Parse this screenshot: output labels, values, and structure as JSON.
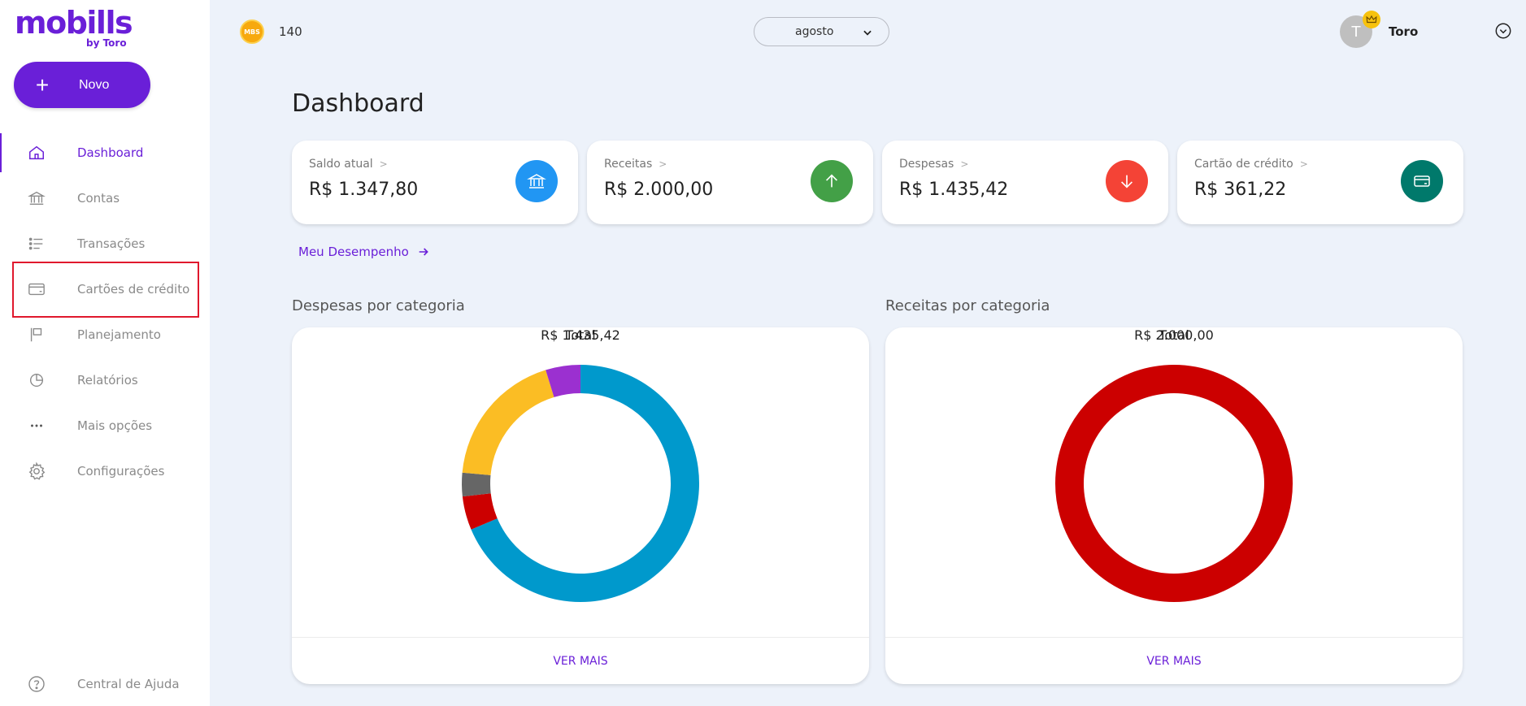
{
  "app": {
    "logo": "mobills",
    "logo_sub": "by Toro",
    "brand_color": "#6a1fd8"
  },
  "sidebar": {
    "new_button": "Novo",
    "items": [
      {
        "label": "Dashboard",
        "icon": "home-icon",
        "active": true
      },
      {
        "label": "Contas",
        "icon": "bank-icon"
      },
      {
        "label": "Transações",
        "icon": "list-icon"
      },
      {
        "label": "Cartões de crédito",
        "icon": "credit-card-icon",
        "highlighted": true
      },
      {
        "label": "Planejamento",
        "icon": "flag-icon"
      },
      {
        "label": "Relatórios",
        "icon": "pie-chart-icon"
      },
      {
        "label": "Mais opções",
        "icon": "more-dots-icon"
      },
      {
        "label": "Configurações",
        "icon": "gear-icon"
      }
    ],
    "help": "Central de Ajuda"
  },
  "topbar": {
    "coin_label": "MBS",
    "coin_count": "140",
    "month": "agosto",
    "avatar_initial": "T",
    "user_name": "Toro"
  },
  "main": {
    "title": "Dashboard",
    "cards": [
      {
        "label": "Saldo atual",
        "value": "R$ 1.347,80",
        "icon": "bank-icon",
        "color": "#2196f3"
      },
      {
        "label": "Receitas",
        "value": "R$ 2.000,00",
        "icon": "arrow-up-icon",
        "color": "#43a047"
      },
      {
        "label": "Despesas",
        "value": "R$ 1.435,42",
        "icon": "arrow-down-icon",
        "color": "#f44336"
      },
      {
        "label": "Cartão de crédito",
        "value": "R$ 361,22",
        "icon": "credit-card-icon",
        "color": "#00796b"
      }
    ],
    "performance_link": "Meu Desempenho"
  },
  "chart_data": [
    {
      "type": "pie",
      "title": "Despesas por categoria",
      "center_value": "R$ 1.435,42",
      "center_label": "Total",
      "total": 1435.42,
      "slices": [
        {
          "value": 985,
          "color": "#0099cc"
        },
        {
          "value": 66,
          "color": "#cc0000"
        },
        {
          "value": 46,
          "color": "#666666"
        },
        {
          "value": 270,
          "color": "#fbbd24"
        },
        {
          "value": 68,
          "color": "#9b30d0"
        }
      ],
      "more_label": "VER MAIS"
    },
    {
      "type": "pie",
      "title": "Receitas por categoria",
      "center_value": "R$ 2.000,00",
      "center_label": "Total",
      "total": 2000.0,
      "slices": [
        {
          "value": 2000,
          "color": "#cc0000"
        }
      ],
      "more_label": "VER MAIS"
    }
  ]
}
